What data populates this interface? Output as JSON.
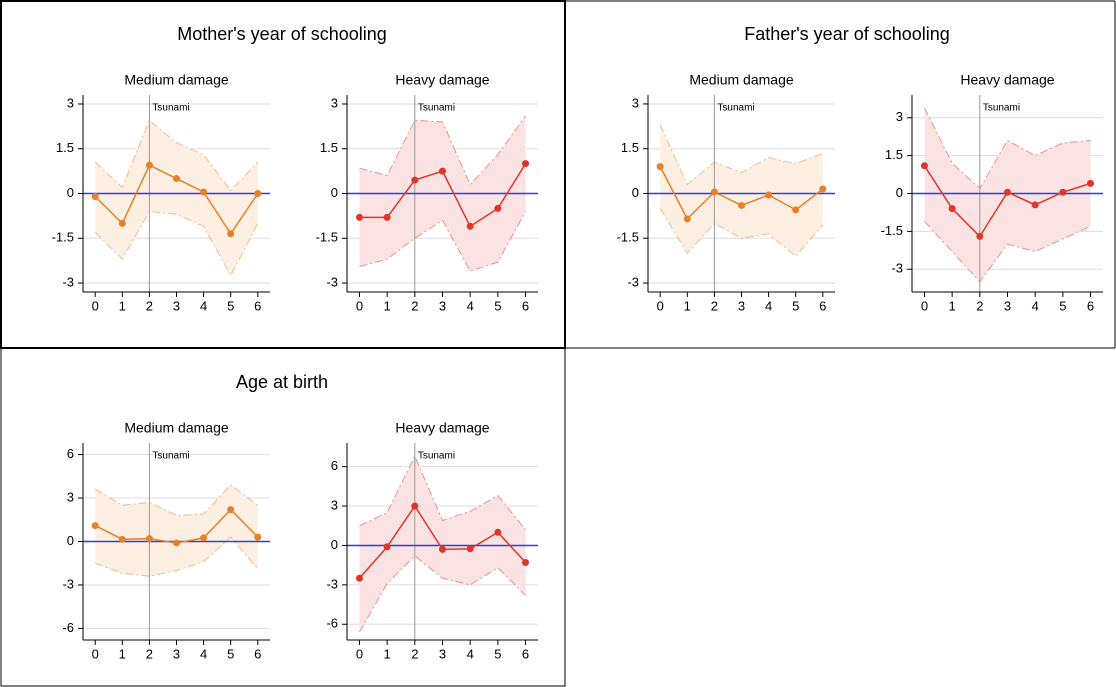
{
  "chart_data": [
    {
      "title": "Mother's year of schooling",
      "subplots": [
        {
          "type": "line",
          "title": "Medium damage",
          "annotation": "Tsunami",
          "vline": 2,
          "hline": 0,
          "hline_color": "#2b3fe0",
          "x": [
            0,
            1,
            2,
            3,
            4,
            5,
            6
          ],
          "xlim": [
            -0.45,
            6.45
          ],
          "xticks": [
            0,
            1,
            2,
            3,
            4,
            5,
            6
          ],
          "ylim": [
            -3.3,
            3.3
          ],
          "yticks": [
            -3,
            -1.5,
            0,
            1.5,
            3
          ],
          "grid": true,
          "color": "#e8802a",
          "band_color": "#fdf0e2",
          "values": [
            -0.1,
            -1.0,
            0.95,
            0.5,
            0.05,
            -1.35,
            0.0
          ],
          "upper": [
            1.05,
            0.2,
            2.45,
            1.7,
            1.3,
            0.1,
            1.05
          ],
          "lower": [
            -1.3,
            -2.2,
            -0.6,
            -0.7,
            -1.1,
            -2.75,
            -1.0
          ]
        },
        {
          "type": "line",
          "title": "Heavy damage",
          "annotation": "Tsunami",
          "vline": 2,
          "hline": 0,
          "hline_color": "#2b3fe0",
          "x": [
            0,
            1,
            2,
            3,
            4,
            5,
            6
          ],
          "xlim": [
            -0.45,
            6.45
          ],
          "xticks": [
            0,
            1,
            2,
            3,
            4,
            5,
            6
          ],
          "ylim": [
            -3.3,
            3.3
          ],
          "yticks": [
            -3,
            -1.5,
            0,
            1.5,
            3
          ],
          "grid": true,
          "color": "#e0362a",
          "band_color": "#fbe3e3",
          "values": [
            -0.8,
            -0.8,
            0.45,
            0.75,
            -1.1,
            -0.5,
            1.0
          ],
          "upper": [
            0.85,
            0.6,
            2.45,
            2.4,
            0.3,
            1.3,
            2.6
          ],
          "lower": [
            -2.45,
            -2.2,
            -1.5,
            -0.9,
            -2.6,
            -2.3,
            -0.6
          ]
        }
      ]
    },
    {
      "title": "Father's year of schooling",
      "subplots": [
        {
          "type": "line",
          "title": "Medium damage",
          "annotation": "Tsunami",
          "vline": 2,
          "hline": 0,
          "hline_color": "#2b3fe0",
          "x": [
            0,
            1,
            2,
            3,
            4,
            5,
            6
          ],
          "xlim": [
            -0.45,
            6.45
          ],
          "xticks": [
            0,
            1,
            2,
            3,
            4,
            5,
            6
          ],
          "ylim": [
            -3.3,
            3.3
          ],
          "yticks": [
            -3,
            -1.5,
            0,
            1.5,
            3
          ],
          "grid": true,
          "color": "#e8802a",
          "band_color": "#fdf0e2",
          "values": [
            0.9,
            -0.85,
            0.05,
            -0.4,
            -0.05,
            -0.55,
            0.15
          ],
          "upper": [
            2.3,
            0.3,
            1.05,
            0.7,
            1.2,
            1.0,
            1.35
          ],
          "lower": [
            -0.5,
            -2.0,
            -1.0,
            -1.5,
            -1.35,
            -2.1,
            -1.05
          ]
        },
        {
          "type": "line",
          "title": "Heavy damage",
          "annotation": "Tsunami",
          "vline": 2,
          "hline": 0,
          "hline_color": "#2b3fe0",
          "x": [
            0,
            1,
            2,
            3,
            4,
            5,
            6
          ],
          "xlim": [
            -0.45,
            6.45
          ],
          "xticks": [
            0,
            1,
            2,
            3,
            4,
            5,
            6
          ],
          "ylim": [
            -3.9,
            3.9
          ],
          "yticks": [
            -3,
            -1.5,
            0,
            1.5,
            3
          ],
          "grid": true,
          "color": "#e0362a",
          "band_color": "#fbe3e3",
          "values": [
            1.1,
            -0.6,
            -1.7,
            0.05,
            -0.45,
            0.05,
            0.4
          ],
          "upper": [
            3.4,
            1.2,
            0.2,
            2.1,
            1.5,
            2.0,
            2.1
          ],
          "lower": [
            -1.1,
            -2.3,
            -3.5,
            -2.0,
            -2.3,
            -1.8,
            -1.3
          ]
        }
      ]
    },
    {
      "title": "Age at birth",
      "subplots": [
        {
          "type": "line",
          "title": "Medium damage",
          "annotation": "Tsunami",
          "vline": 2,
          "hline": 0,
          "hline_color": "#2b3fe0",
          "x": [
            0,
            1,
            2,
            3,
            4,
            5,
            6
          ],
          "xlim": [
            -0.45,
            6.45
          ],
          "xticks": [
            0,
            1,
            2,
            3,
            4,
            5,
            6
          ],
          "ylim": [
            -6.8,
            6.8
          ],
          "yticks": [
            -6,
            -3,
            0,
            3,
            6
          ],
          "grid": true,
          "color": "#e8802a",
          "band_color": "#fdf0e2",
          "values": [
            1.1,
            0.15,
            0.2,
            -0.1,
            0.25,
            2.2,
            0.3
          ],
          "upper": [
            3.6,
            2.5,
            2.7,
            1.8,
            1.9,
            3.9,
            2.5
          ],
          "lower": [
            -1.5,
            -2.2,
            -2.4,
            -2.0,
            -1.4,
            0.3,
            -1.9
          ]
        },
        {
          "type": "line",
          "title": "Heavy damage",
          "annotation": "Tsunami",
          "vline": 2,
          "hline": 0,
          "hline_color": "#2b3fe0",
          "x": [
            0,
            1,
            2,
            3,
            4,
            5,
            6
          ],
          "xlim": [
            -0.45,
            6.45
          ],
          "xticks": [
            0,
            1,
            2,
            3,
            4,
            5,
            6
          ],
          "ylim": [
            -7.2,
            7.8
          ],
          "yticks": [
            -6,
            -3,
            0,
            3,
            6
          ],
          "grid": true,
          "color": "#e0362a",
          "band_color": "#fbe3e3",
          "values": [
            -2.5,
            -0.1,
            3.0,
            -0.3,
            -0.25,
            1.0,
            -1.3
          ],
          "upper": [
            1.5,
            2.5,
            6.8,
            1.9,
            2.6,
            3.8,
            1.2
          ],
          "lower": [
            -6.6,
            -2.9,
            -0.8,
            -2.5,
            -3.0,
            -1.7,
            -3.8
          ]
        }
      ]
    }
  ]
}
